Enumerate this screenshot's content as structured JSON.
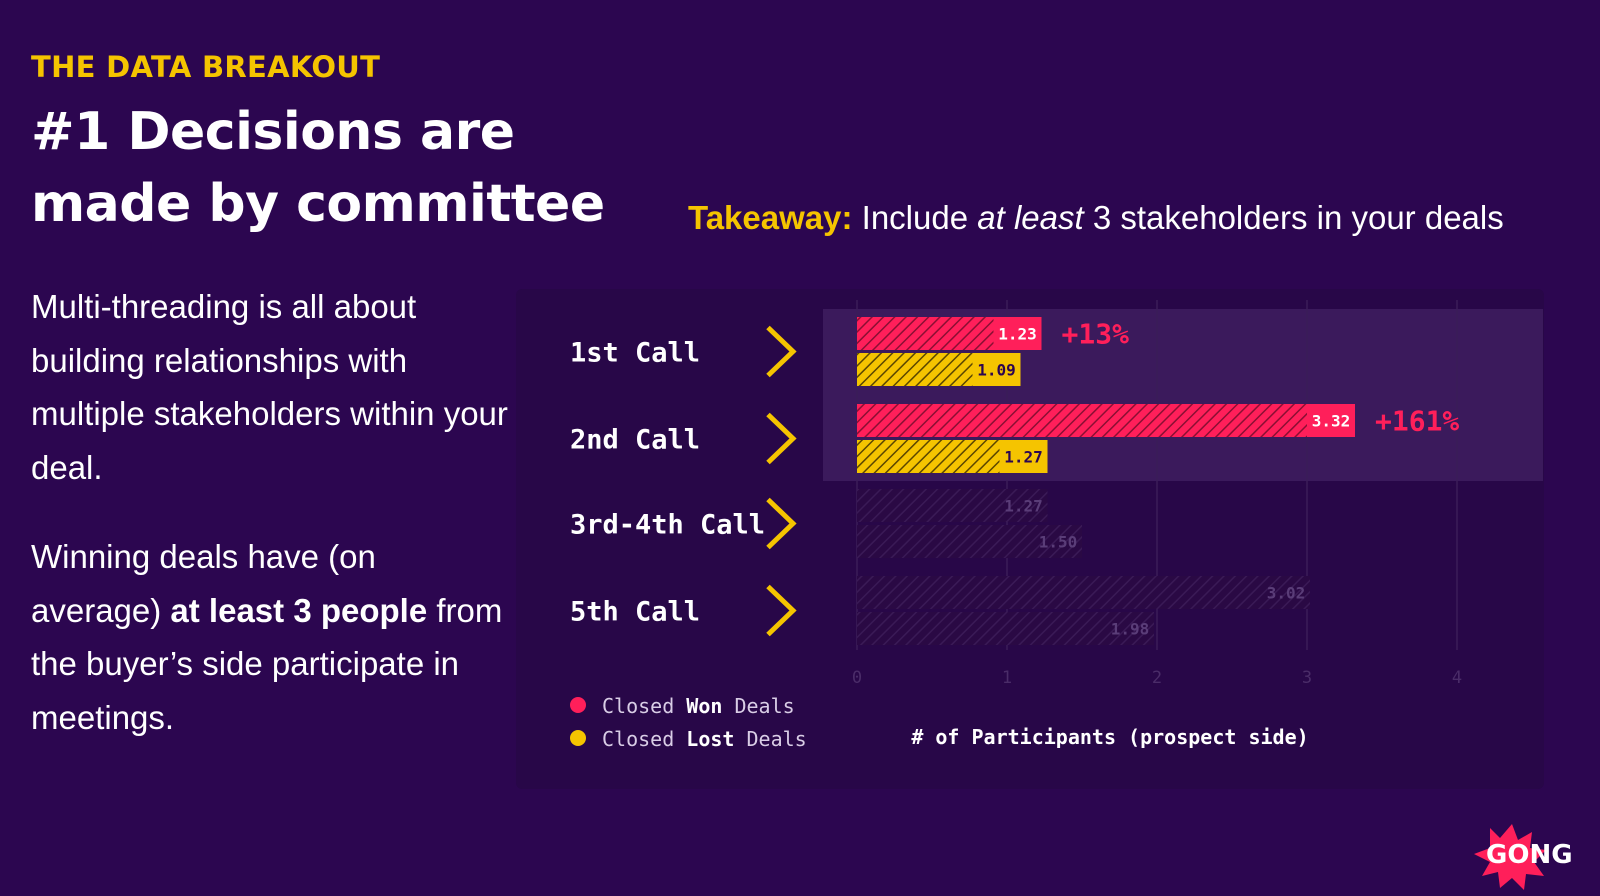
{
  "header": {
    "eyebrow": "THE DATA BREAKOUT",
    "title_line1": "#1 Decisions are",
    "title_line2": "made by committee"
  },
  "takeaway": {
    "label": "Takeaway:",
    "pre": "Include",
    "emphasis": "at least",
    "post": "3 stakeholders in your deals"
  },
  "body": {
    "p1": "Multi-threading is all about building relationships with multiple stakeholders within your deal.",
    "p2_pre": "Winning deals have (on average)",
    "p2_bold": "at least 3 people",
    "p2_post": "from the buyer’s side participate in meetings."
  },
  "legend": [
    {
      "pre": "Closed",
      "bold": "Won",
      "post": "Deals",
      "color": "#ff1f5a"
    },
    {
      "pre": "Closed",
      "bold": "Lost",
      "post": "Deals",
      "color": "#f5c400"
    }
  ],
  "brand": {
    "logo_text": "GONG",
    "logo_color": "#ff1f5a"
  },
  "chart_data": {
    "type": "bar",
    "orientation": "horizontal",
    "categories": [
      "1st Call",
      "2nd Call",
      "3rd-4th Call",
      "5th Call"
    ],
    "series": [
      {
        "name": "Closed Won Deals",
        "color": "#ff1f5a",
        "values": [
          1.23,
          3.32,
          1.27,
          3.02
        ]
      },
      {
        "name": "Closed Lost Deals",
        "color": "#f5c400",
        "values": [
          1.09,
          1.27,
          1.5,
          1.98
        ]
      }
    ],
    "data_labels": {
      "won": [
        "1.23",
        "3.32",
        "1.27",
        "3.02"
      ],
      "lost": [
        "1.09",
        "1.27",
        "1.50",
        "1.98"
      ]
    },
    "highlighted_categories": [
      0,
      1
    ],
    "annotations": [
      {
        "category": 0,
        "text": "+13%"
      },
      {
        "category": 1,
        "text": "+161%"
      }
    ],
    "xticks": [
      "0",
      "1",
      "2",
      "3",
      "4"
    ],
    "xlim": [
      0,
      4.6
    ],
    "xlabel": "# of Participants (prospect side)",
    "grid": true,
    "legend_position": "bottom-left"
  }
}
